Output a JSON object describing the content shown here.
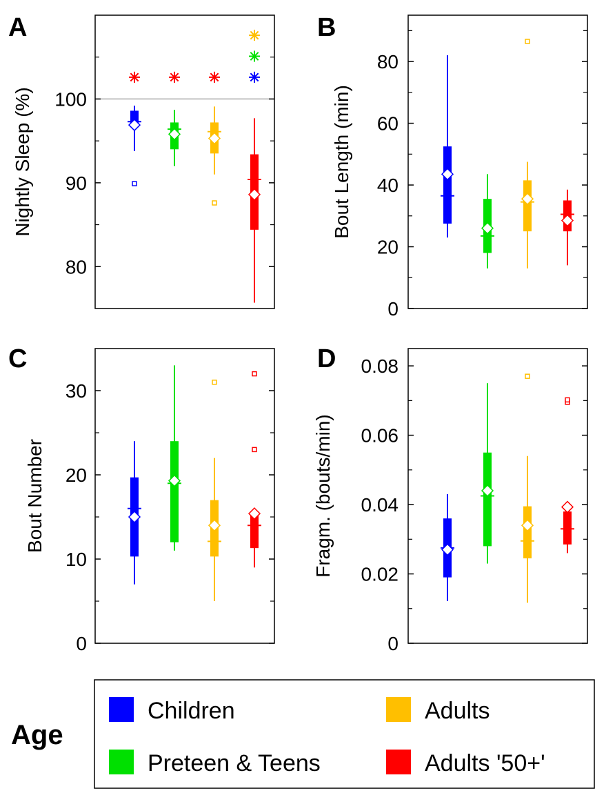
{
  "colors": {
    "Children": "#0000ff",
    "Preteen & Teens": "#00e000",
    "Adults": "#ffbf00",
    "Adults '50+'": "#ff0000",
    "reference_line": "#aaaaaa",
    "mean_marker_fill": "#ffffff"
  },
  "legend": {
    "title": "Age",
    "entries": [
      "Children",
      "Preteen & Teens",
      "Adults",
      "Adults '50+'"
    ]
  },
  "chart_data": [
    {
      "type": "box",
      "panel": "A",
      "ylabel": "Nightly Sleep (%)",
      "ylim": [
        75,
        110
      ],
      "yticks": [
        80,
        90,
        100
      ],
      "reference_line": 100,
      "series": [
        {
          "name": "Children",
          "whisker_low": 93.8,
          "q1": 96.9,
          "median": 97.3,
          "q3": 98.6,
          "whisker_high": 99.2,
          "mean": 96.9,
          "outliers": [
            89.9
          ],
          "significance": []
        },
        {
          "name": "Preteen & Teens",
          "whisker_low": 92.0,
          "q1": 94.0,
          "median": 96.4,
          "q3": 97.2,
          "whisker_high": 98.7,
          "mean": 95.8,
          "outliers": [],
          "significance": [
            {
              "value": 102.6,
              "color_of": "Adults '50+'"
            }
          ]
        },
        {
          "name": "Adults",
          "whisker_low": 91.0,
          "q1": 93.5,
          "median": 96.1,
          "q3": 97.2,
          "whisker_high": 99.1,
          "mean": 95.3,
          "outliers": [
            87.6
          ],
          "significance": [
            {
              "value": 102.6,
              "color_of": "Adults '50+'"
            }
          ]
        },
        {
          "name": "Adults '50+'",
          "whisker_low": 75.7,
          "q1": 84.4,
          "median": 90.4,
          "q3": 93.4,
          "whisker_high": 97.7,
          "mean": 88.6,
          "outliers": [],
          "significance": [
            {
              "value": 102.6,
              "color_of": "Children"
            },
            {
              "value": 105.1,
              "color_of": "Preteen & Teens"
            },
            {
              "value": 107.6,
              "color_of": "Adults"
            }
          ]
        }
      ],
      "extra_markers": [
        {
          "group": "Children",
          "value": 102.6,
          "color_of": "Adults '50+'"
        }
      ]
    },
    {
      "type": "box",
      "panel": "B",
      "ylabel": "Bout Length (min)",
      "ylim": [
        0,
        95
      ],
      "yticks": [
        0,
        20,
        40,
        60,
        80
      ],
      "series": [
        {
          "name": "Children",
          "whisker_low": 23,
          "q1": 27.5,
          "median": 36.5,
          "q3": 52.5,
          "whisker_high": 82,
          "mean": 43.5,
          "outliers": []
        },
        {
          "name": "Preteen & Teens",
          "whisker_low": 13,
          "q1": 18,
          "median": 23.5,
          "q3": 35.5,
          "whisker_high": 43.5,
          "mean": 26,
          "outliers": []
        },
        {
          "name": "Adults",
          "whisker_low": 13,
          "q1": 25,
          "median": 34.5,
          "q3": 41.5,
          "whisker_high": 47.5,
          "mean": 35.5,
          "outliers": [
            86.5
          ]
        },
        {
          "name": "Adults '50+'",
          "whisker_low": 14,
          "q1": 25,
          "median": 30.5,
          "q3": 35,
          "whisker_high": 38.5,
          "mean": 28.5,
          "outliers": []
        }
      ]
    },
    {
      "type": "box",
      "panel": "C",
      "ylabel": "Bout Number",
      "ylim": [
        0,
        35
      ],
      "yticks": [
        0,
        10,
        20,
        30
      ],
      "series": [
        {
          "name": "Children",
          "whisker_low": 7,
          "q1": 10.3,
          "median": 16,
          "q3": 19.7,
          "whisker_high": 24,
          "mean": 15,
          "outliers": []
        },
        {
          "name": "Preteen & Teens",
          "whisker_low": 11,
          "q1": 12,
          "median": 19,
          "q3": 24,
          "whisker_high": 33,
          "mean": 19.3,
          "outliers": []
        },
        {
          "name": "Adults",
          "whisker_low": 5,
          "q1": 10.3,
          "median": 12.1,
          "q3": 17,
          "whisker_high": 22,
          "mean": 14,
          "outliers": [
            31
          ]
        },
        {
          "name": "Adults '50+'",
          "whisker_low": 9,
          "q1": 11.3,
          "median": 14,
          "q3": 15.5,
          "whisker_high": 15.5,
          "mean": 15.4,
          "outliers": [
            23,
            32
          ]
        }
      ]
    },
    {
      "type": "box",
      "panel": "D",
      "ylabel": "Fragm. (bouts/min)",
      "ylim": [
        0,
        0.085
      ],
      "yticks": [
        0,
        0.02,
        0.04,
        0.06,
        0.08
      ],
      "ytick_labels": [
        "0",
        "0.02",
        "0.04",
        "0.06",
        "0.08"
      ],
      "series": [
        {
          "name": "Children",
          "whisker_low": 0.0122,
          "q1": 0.019,
          "median": 0.0275,
          "q3": 0.036,
          "whisker_high": 0.043,
          "mean": 0.027,
          "outliers": []
        },
        {
          "name": "Preteen & Teens",
          "whisker_low": 0.023,
          "q1": 0.028,
          "median": 0.0425,
          "q3": 0.055,
          "whisker_high": 0.075,
          "mean": 0.044,
          "outliers": []
        },
        {
          "name": "Adults",
          "whisker_low": 0.0117,
          "q1": 0.0245,
          "median": 0.0295,
          "q3": 0.0395,
          "whisker_high": 0.054,
          "mean": 0.034,
          "outliers": [
            0.077
          ]
        },
        {
          "name": "Adults '50+'",
          "whisker_low": 0.026,
          "q1": 0.0285,
          "median": 0.033,
          "q3": 0.038,
          "whisker_high": 0.039,
          "mean": 0.0393,
          "outliers": [
            0.0695,
            0.0702
          ]
        }
      ]
    }
  ]
}
